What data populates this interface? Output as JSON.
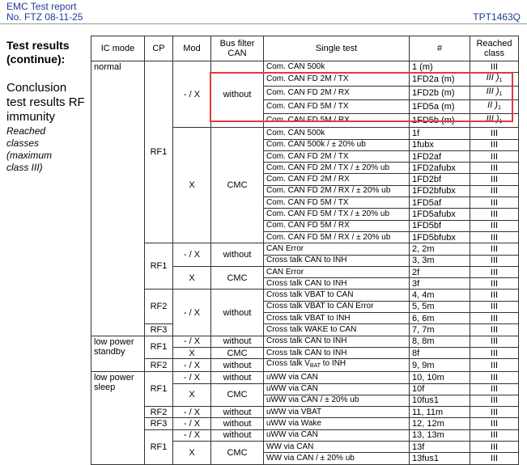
{
  "header": {
    "title": "EMC Test report",
    "number": "No. FTZ 08-11-25",
    "product": "TPT1463Q"
  },
  "sidebar": {
    "heading": "Test results (continue):",
    "conclusion": "Conclusion test results RF immunity",
    "note": "Reached classes (maximum class III)"
  },
  "table": {
    "columns": [
      "IC mode",
      "CP",
      "Mod",
      "Bus filter CAN",
      "Single test",
      "#",
      "Reached class"
    ],
    "rows": [
      {
        "ic_mode": "normal",
        "cp": "RF1",
        "mod": "- / X",
        "filter": "without",
        "test": "Com. CAN 500k",
        "num": "1 (m)",
        "cls": "III"
      },
      {
        "test": "Com. CAN FD 2M / TX",
        "num": "1FD2a (m)",
        "cls": "III )",
        "note": "1"
      },
      {
        "test": "Com. CAN FD 2M / RX",
        "num": "1FD2b (m)",
        "cls": "III )",
        "note": "1"
      },
      {
        "test": "Com. CAN FD 5M / TX",
        "num": "1FD5a (m)",
        "cls": "II )",
        "note": "1"
      },
      {
        "test": "Com. CAN FD 5M / RX",
        "num": "1FD5b (m)",
        "cls": "III )",
        "note": "1"
      },
      {
        "mod": "X",
        "filter": "CMC",
        "test": "Com. CAN 500k",
        "num": "1f",
        "cls": "III"
      },
      {
        "test": "Com. CAN 500k / ± 20% ub",
        "num": "1fubx",
        "cls": "III"
      },
      {
        "test": "Com. CAN FD 2M / TX",
        "num": "1FD2af",
        "cls": "III"
      },
      {
        "test": "Com. CAN FD 2M / TX / ± 20% ub",
        "num": "1FD2afubx",
        "cls": "III"
      },
      {
        "test": "Com. CAN FD 2M / RX",
        "num": "1FD2bf",
        "cls": "III"
      },
      {
        "test": "Com. CAN FD 2M / RX / ± 20% ub",
        "num": "1FD2bfubx",
        "cls": "III"
      },
      {
        "test": "Com. CAN FD 5M / TX",
        "num": "1FD5af",
        "cls": "III"
      },
      {
        "test": "Com. CAN FD 5M / TX / ± 20% ub",
        "num": "1FD5afubx",
        "cls": "III"
      },
      {
        "test": "Com. CAN FD 5M / RX",
        "num": "1FD5bf",
        "cls": "III"
      },
      {
        "test": "Com. CAN FD 5M / RX / ± 20% ub",
        "num": "1FD5bfubx",
        "cls": "III"
      },
      {
        "cp": "RF1",
        "mod": "- / X",
        "filter": "without",
        "test": "CAN Error",
        "num": "2, 2m",
        "cls": "III"
      },
      {
        "test": "Cross talk CAN to INH",
        "num": "3, 3m",
        "cls": "III"
      },
      {
        "mod": "X",
        "filter": "CMC",
        "test": "CAN Error",
        "num": "2f",
        "cls": "III"
      },
      {
        "test": "Cross talk CAN to INH",
        "num": "3f",
        "cls": "III"
      },
      {
        "cp": "RF2",
        "mod": "- / X",
        "filter": "without",
        "test": "Cross talk VBAT to CAN",
        "num": "4, 4m",
        "cls": "III"
      },
      {
        "test": "Cross talk VBAT to CAN Error",
        "num": "5, 5m",
        "cls": "III"
      },
      {
        "test": "Cross talk VBAT to INH",
        "num": "6, 6m",
        "cls": "III"
      },
      {
        "cp": "RF3",
        "test": "Cross talk WAKE to CAN",
        "num": "7, 7m",
        "cls": "III"
      },
      {
        "ic_mode": "low power standby",
        "cp": "RF1",
        "mod": "- / X",
        "filter": "without",
        "test": "Cross talk CAN to INH",
        "num": "8, 8m",
        "cls": "III"
      },
      {
        "mod": "X",
        "filter": "CMC",
        "test": "Cross talk CAN to INH",
        "num": "8f",
        "cls": "III"
      },
      {
        "cp": "RF2",
        "mod": "- / X",
        "filter": "without",
        "test": "Cross talk V",
        "test_sub": "BAT",
        "test_after": " to INH",
        "num": "9, 9m",
        "cls": "III"
      },
      {
        "ic_mode": "low power sleep",
        "cp": "RF1",
        "mod": "- / X",
        "filter": "without",
        "test": "uWW via CAN",
        "num": "10, 10m",
        "cls": "III"
      },
      {
        "mod": "X",
        "filter": "CMC",
        "test": "uWW via CAN",
        "num": "10f",
        "cls": "III"
      },
      {
        "test": "uWW via CAN / ± 20% ub",
        "num": "10fus1",
        "cls": "III"
      },
      {
        "cp": "RF2",
        "mod": "- / X",
        "filter": "without",
        "test": "uWW via VBAT",
        "num": "11, 11m",
        "cls": "III"
      },
      {
        "cp": "RF3",
        "mod": "- / X",
        "filter": "without",
        "test": "uWW via Wake",
        "num": "12, 12m",
        "cls": "III"
      },
      {
        "cp": "RF1",
        "mod": "- / X",
        "filter": "without",
        "test": "uWW via CAN",
        "num": "13, 13m",
        "cls": "III"
      },
      {
        "mod": "X",
        "filter": "CMC",
        "test": "WW via CAN",
        "num": "13f",
        "cls": "III"
      },
      {
        "test": "WW via CAN / ± 20% ub",
        "num": "13fus1",
        "cls": "III"
      }
    ]
  }
}
